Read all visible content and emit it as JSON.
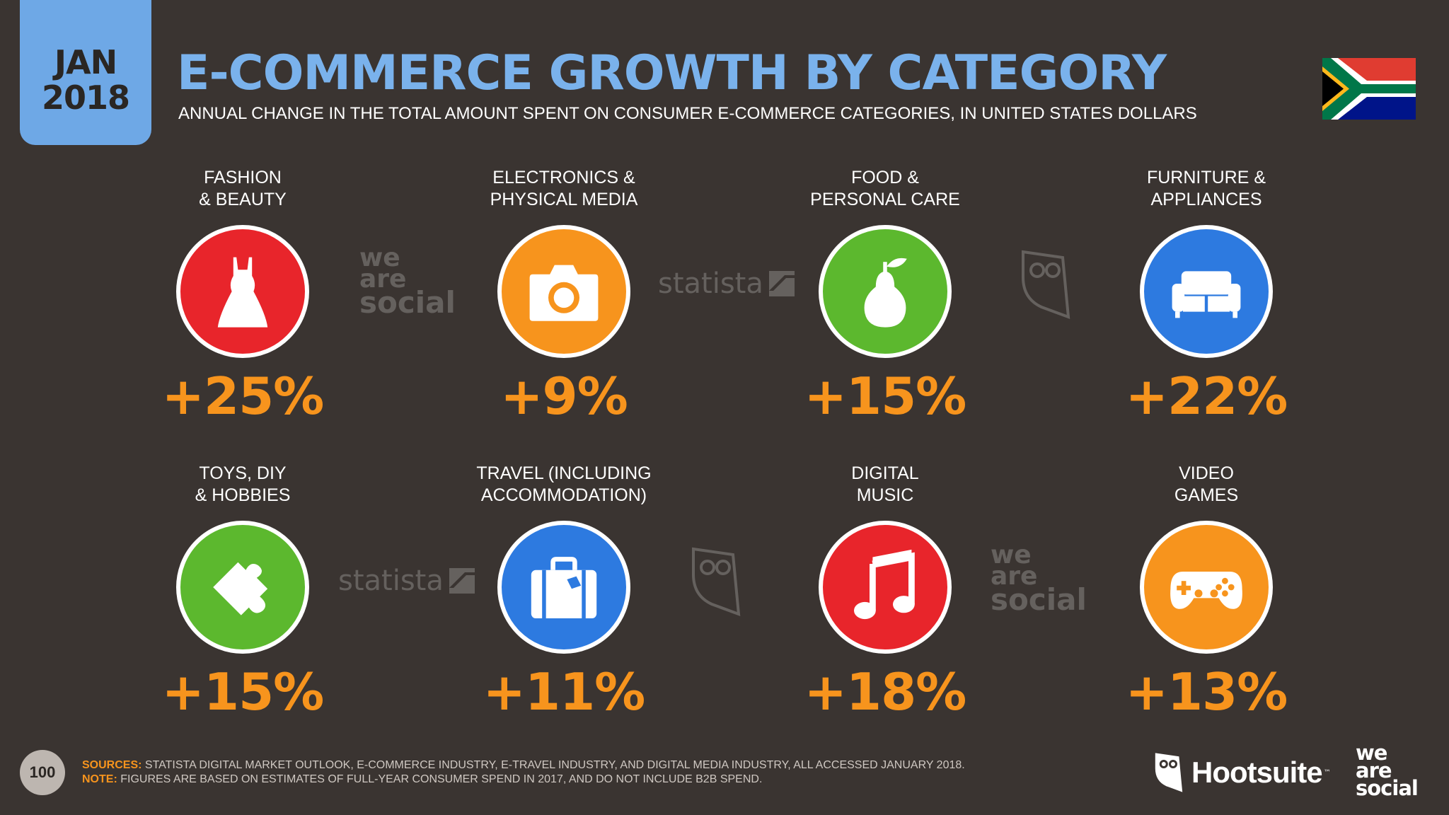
{
  "header": {
    "date_month": "JAN",
    "date_year": "2018",
    "title": "E-COMMERCE GROWTH BY CATEGORY",
    "subtitle": "ANNUAL CHANGE IN THE TOTAL AMOUNT SPENT ON CONSUMER E-COMMERCE CATEGORIES, IN UNITED STATES DOLLARS",
    "flag_icon": "south-africa-flag-icon"
  },
  "colors": {
    "background": "#3a3431",
    "title_blue": "#7ab2ec",
    "badge_blue": "#6ea8e6",
    "orange": "#f7941d",
    "red": "#e8252b",
    "green": "#5cb82e",
    "blue": "#2d7ae0"
  },
  "categories": [
    {
      "label": "FASHION\n& BEAUTY",
      "value": "+25%",
      "icon": "dress-icon",
      "color": "#e8252b"
    },
    {
      "label": "ELECTRONICS &\nPHYSICAL MEDIA",
      "value": "+9%",
      "icon": "camera-icon",
      "color": "#f7941d"
    },
    {
      "label": "FOOD &\nPERSONAL CARE",
      "value": "+15%",
      "icon": "pear-icon",
      "color": "#5cb82e"
    },
    {
      "label": "FURNITURE &\nAPPLIANCES",
      "value": "+22%",
      "icon": "sofa-icon",
      "color": "#2d7ae0"
    },
    {
      "label": "TOYS, DIY\n& HOBBIES",
      "value": "+15%",
      "icon": "puzzle-piece-icon",
      "color": "#5cb82e"
    },
    {
      "label": "TRAVEL (INCLUDING\nACCOMMODATION)",
      "value": "+11%",
      "icon": "suitcase-icon",
      "color": "#2d7ae0"
    },
    {
      "label": "DIGITAL\nMUSIC",
      "value": "+18%",
      "icon": "music-note-icon",
      "color": "#e8252b"
    },
    {
      "label": "VIDEO\nGAMES",
      "value": "+13%",
      "icon": "gamepad-icon",
      "color": "#f7941d"
    }
  ],
  "watermarks": {
    "we_are_social_1": "we",
    "we_are_social_2": "are",
    "we_are_social_3": "social",
    "statista": "statista"
  },
  "footer": {
    "page_number": "100",
    "sources_key": "SOURCES:",
    "sources_text": " STATISTA DIGITAL MARKET OUTLOOK, E-COMMERCE INDUSTRY, E-TRAVEL INDUSTRY, AND DIGITAL MEDIA INDUSTRY, ALL ACCESSED JANUARY 2018.",
    "note_key": "NOTE:",
    "note_text": " FIGURES ARE BASED ON ESTIMATES OF FULL-YEAR CONSUMER SPEND IN 2017, AND DO NOT INCLUDE B2B SPEND.",
    "hootsuite": "Hootsuite",
    "tm": "™",
    "was_1": "we",
    "was_2": "are",
    "was_3": "social"
  }
}
